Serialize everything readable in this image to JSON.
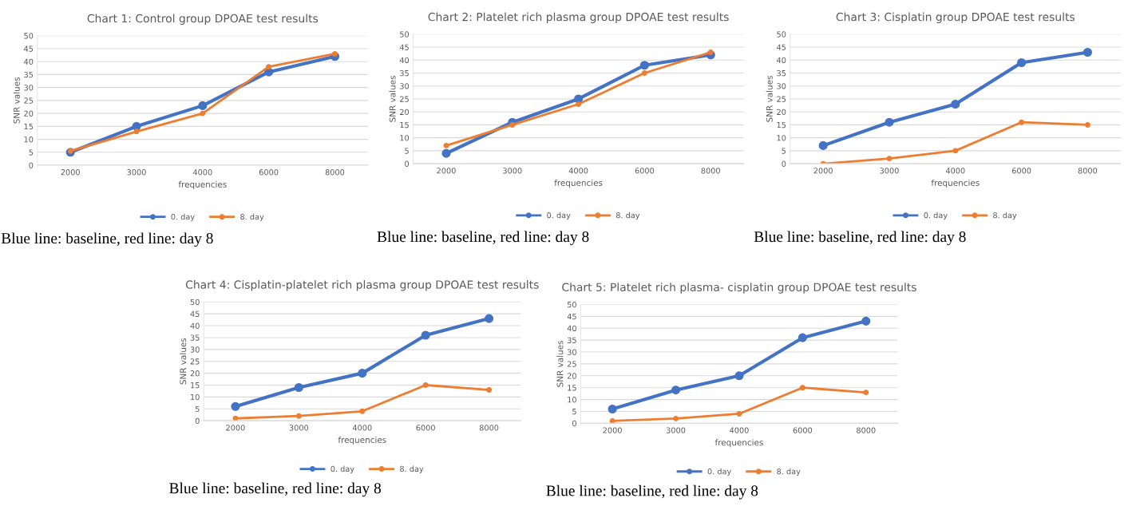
{
  "chart_data": [
    {
      "type": "line",
      "title": "Chart 1: Control group DPOAE test results",
      "xlabel": "frequencies",
      "ylabel": "SNR values",
      "categories": [
        "2000",
        "3000",
        "4000",
        "6000",
        "8000"
      ],
      "series": [
        {
          "name": "0. day",
          "color": "#4472c4",
          "values": [
            5,
            15,
            23,
            36,
            42
          ]
        },
        {
          "name": "8. day",
          "color": "#ed7d31",
          "values": [
            5.5,
            13,
            20,
            38,
            43
          ]
        }
      ],
      "ylim": [
        0,
        50
      ],
      "yticks": [
        0,
        5,
        10,
        15,
        20,
        25,
        30,
        35,
        40,
        45,
        50
      ],
      "grid": "y",
      "legend": "bottom",
      "marker": "circle",
      "line_style": "solid",
      "annotations": [
        "Blue line: baseline, red line: day 8"
      ]
    },
    {
      "type": "line",
      "title": "Chart 2: Platelet rich plasma group DPOAE test results",
      "xlabel": "frequencies",
      "ylabel": "SNR values",
      "categories": [
        "2000",
        "3000",
        "4000",
        "6000",
        "8000"
      ],
      "series": [
        {
          "name": "0. day",
          "color": "#4472c4",
          "values": [
            4,
            16,
            25,
            38,
            42
          ]
        },
        {
          "name": "8. day",
          "color": "#ed7d31",
          "values": [
            7,
            15,
            23,
            35,
            43
          ]
        }
      ],
      "ylim": [
        0,
        50
      ],
      "yticks": [
        0,
        5,
        10,
        15,
        20,
        25,
        30,
        35,
        40,
        45,
        50
      ],
      "grid": "y",
      "legend": "bottom",
      "marker": "circle",
      "line_style": "solid",
      "annotations": [
        "Blue line: baseline, red line: day 8"
      ]
    },
    {
      "type": "line",
      "title": "Chart 3: Cisplatin group DPOAE test results",
      "xlabel": "frequencies",
      "ylabel": "SNR values",
      "categories": [
        "2000",
        "3000",
        "4000",
        "6000",
        "8000"
      ],
      "series": [
        {
          "name": "0. day",
          "color": "#4472c4",
          "values": [
            7,
            16,
            23,
            39,
            43
          ]
        },
        {
          "name": "8. day",
          "color": "#ed7d31",
          "values": [
            0,
            2,
            5,
            16,
            15
          ]
        }
      ],
      "ylim": [
        0,
        50
      ],
      "yticks": [
        0,
        5,
        10,
        15,
        20,
        25,
        30,
        35,
        40,
        45,
        50
      ],
      "grid": "y",
      "legend": "bottom",
      "marker": "circle",
      "line_style": "solid",
      "annotations": [
        "Blue line: baseline, red line: day 8"
      ]
    },
    {
      "type": "line",
      "title": "Chart 4: Cisplatin-platelet rich plasma group DPOAE test results",
      "xlabel": "frequencies",
      "ylabel": "SNR values",
      "categories": [
        "2000",
        "3000",
        "4000",
        "6000",
        "8000"
      ],
      "series": [
        {
          "name": "0. day",
          "color": "#4472c4",
          "values": [
            6,
            14,
            20,
            36,
            43
          ]
        },
        {
          "name": "8. day",
          "color": "#ed7d31",
          "values": [
            1,
            2,
            4,
            15,
            13
          ]
        }
      ],
      "ylim": [
        0,
        50
      ],
      "yticks": [
        0,
        5,
        10,
        15,
        20,
        25,
        30,
        35,
        40,
        45,
        50
      ],
      "grid": "y",
      "legend": "bottom",
      "marker": "circle",
      "line_style": "solid",
      "annotations": [
        "Blue line: baseline, red line: day 8"
      ]
    },
    {
      "type": "line",
      "title": "Chart 5: Platelet rich plasma- cisplatin group DPOAE test results",
      "xlabel": "frequencies",
      "ylabel": "SNR values",
      "categories": [
        "2000",
        "3000",
        "4000",
        "6000",
        "8000"
      ],
      "series": [
        {
          "name": "0. day",
          "color": "#4472c4",
          "values": [
            6,
            14,
            20,
            36,
            43
          ]
        },
        {
          "name": "8. day",
          "color": "#ed7d31",
          "values": [
            1,
            2,
            4,
            15,
            13
          ]
        }
      ],
      "ylim": [
        0,
        50
      ],
      "yticks": [
        0,
        5,
        10,
        15,
        20,
        25,
        30,
        35,
        40,
        45,
        50
      ],
      "grid": "y",
      "legend": "bottom",
      "marker": "circle",
      "line_style": "solid",
      "annotations": [
        "Blue line: baseline, red line: day 8"
      ]
    }
  ]
}
